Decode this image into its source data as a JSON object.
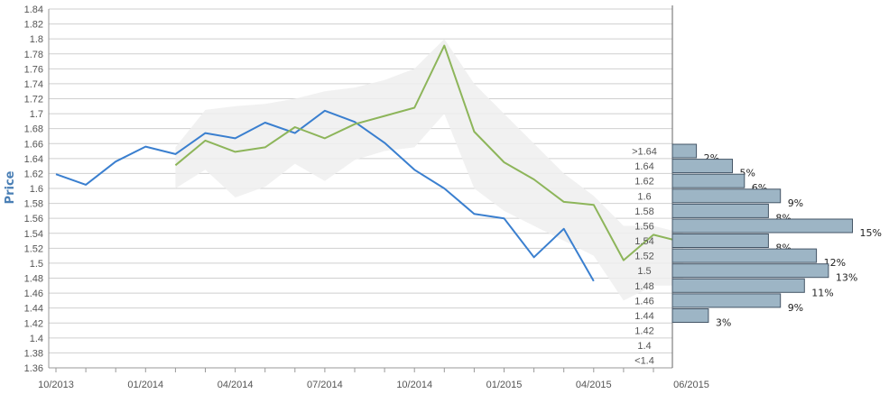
{
  "chart_data": {
    "type": "line",
    "ylabel": "Price",
    "ylim": [
      1.36,
      1.84
    ],
    "y_ticks": [
      "1.36",
      "1.38",
      "1.4",
      "1.42",
      "1.44",
      "1.46",
      "1.48",
      "1.5",
      "1.52",
      "1.54",
      "1.56",
      "1.58",
      "1.6",
      "1.62",
      "1.64",
      "1.66",
      "1.68",
      "1.7",
      "1.72",
      "1.74",
      "1.76",
      "1.78",
      "1.8",
      "1.82",
      "1.84"
    ],
    "x_ticks": [
      "10/2013",
      "01/2014",
      "04/2014",
      "07/2014",
      "10/2014",
      "01/2015",
      "04/2015",
      "06/2015"
    ],
    "grid": true,
    "series": [
      {
        "color": "#3a7fcf",
        "values": [
          1.619,
          1.605,
          1.636,
          1.656,
          1.646,
          1.674,
          1.667,
          1.688,
          1.674,
          1.704,
          1.689,
          1.661,
          1.625,
          1.6,
          1.566,
          1.56,
          1.508,
          1.546,
          1.476
        ]
      },
      {
        "color": "#8db55a",
        "start_index": 4,
        "values": [
          1.631,
          1.664,
          1.649,
          1.655,
          1.682,
          1.667,
          1.686,
          1.697,
          1.708,
          1.791,
          1.676,
          1.635,
          1.612,
          1.582,
          1.578,
          1.504,
          1.538,
          1.528
        ]
      }
    ],
    "band": {
      "color": "#eeeeee",
      "start_index": 4,
      "upper": [
        1.655,
        1.705,
        1.71,
        1.713,
        1.72,
        1.73,
        1.735,
        1.745,
        1.76,
        1.8,
        1.74,
        1.7,
        1.66,
        1.62,
        1.59,
        1.55,
        1.55,
        1.54
      ],
      "lower": [
        1.6,
        1.625,
        1.588,
        1.602,
        1.633,
        1.61,
        1.638,
        1.65,
        1.655,
        1.7,
        1.6,
        1.57,
        1.55,
        1.53,
        1.51,
        1.45,
        1.47,
        1.47
      ]
    },
    "histogram": {
      "color": "#9db5c5",
      "border": "#445566",
      "bins": [
        {
          "label": ">1.64",
          "y": 1.65,
          "percent": 2,
          "text": "2%"
        },
        {
          "label": "1.64",
          "y": 1.63,
          "percent": 5,
          "text": "5%"
        },
        {
          "label": "1.62",
          "y": 1.61,
          "percent": 6,
          "text": "6%"
        },
        {
          "label": "1.6",
          "y": 1.59,
          "percent": 9,
          "text": "9%"
        },
        {
          "label": "1.58",
          "y": 1.57,
          "percent": 8,
          "text": "8%"
        },
        {
          "label": "1.56",
          "y": 1.55,
          "percent": 15,
          "text": "15%"
        },
        {
          "label": "1.54",
          "y": 1.53,
          "percent": 8,
          "text": "8%"
        },
        {
          "label": "1.52",
          "y": 1.51,
          "percent": 12,
          "text": "12%"
        },
        {
          "label": "1.5",
          "y": 1.49,
          "percent": 13,
          "text": "13%"
        },
        {
          "label": "1.48",
          "y": 1.47,
          "percent": 11,
          "text": "11%"
        },
        {
          "label": "1.46",
          "y": 1.45,
          "percent": 9,
          "text": "9%"
        },
        {
          "label": "1.44",
          "y": 1.43,
          "percent": 3,
          "text": "3%"
        },
        {
          "label": "1.42",
          "y": 1.41,
          "percent": 0,
          "text": ""
        },
        {
          "label": "1.4",
          "y": 1.39,
          "percent": 0,
          "text": ""
        },
        {
          "label": "<1.4",
          "y": 1.37,
          "percent": 0,
          "text": ""
        }
      ]
    }
  }
}
